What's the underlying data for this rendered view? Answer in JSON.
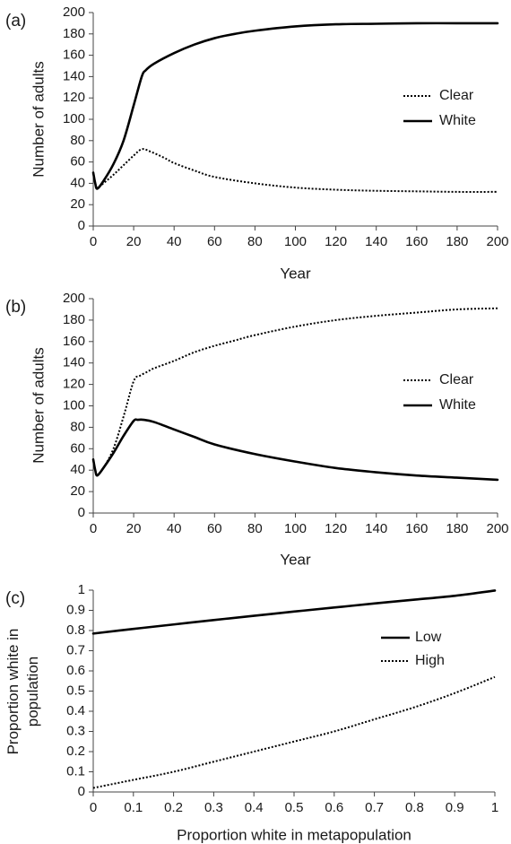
{
  "chart_data": [
    {
      "panel": "(a)",
      "type": "line",
      "xlabel": "Year",
      "ylabel": "Number of adults",
      "xlim": [
        0,
        200
      ],
      "ylim": [
        0,
        200
      ],
      "xticks": [
        "0",
        "20",
        "40",
        "60",
        "80",
        "100",
        "120",
        "140",
        "160",
        "180",
        "200"
      ],
      "yticks": [
        "0",
        "20",
        "40",
        "60",
        "80",
        "100",
        "120",
        "140",
        "160",
        "180",
        "200"
      ],
      "grid": false,
      "legend_position": "right-middle",
      "series": [
        {
          "name": "Clear",
          "style": "dotted",
          "x": [
            0,
            1,
            2,
            5,
            10,
            15,
            20,
            24,
            28,
            35,
            40,
            50,
            60,
            80,
            100,
            120,
            140,
            160,
            180,
            200
          ],
          "y": [
            50,
            40,
            36,
            40,
            48,
            57,
            66,
            72,
            70,
            64,
            59,
            52,
            46,
            40,
            36,
            34,
            33,
            32.5,
            32,
            32
          ]
        },
        {
          "name": "White",
          "style": "solid",
          "x": [
            0,
            1,
            2,
            5,
            10,
            15,
            20,
            24,
            26,
            30,
            40,
            50,
            60,
            70,
            80,
            100,
            120,
            140,
            160,
            180,
            200
          ],
          "y": [
            50,
            40,
            35,
            42,
            58,
            80,
            113,
            140,
            146,
            152,
            162,
            170,
            176,
            180,
            183,
            187,
            189,
            189.5,
            190,
            190,
            190
          ]
        }
      ]
    },
    {
      "panel": "(b)",
      "type": "line",
      "xlabel": "Year",
      "ylabel": "Number of adults",
      "xlim": [
        0,
        200
      ],
      "ylim": [
        0,
        200
      ],
      "xticks": [
        "0",
        "20",
        "40",
        "60",
        "80",
        "100",
        "120",
        "140",
        "160",
        "180",
        "200"
      ],
      "yticks": [
        "0",
        "20",
        "40",
        "60",
        "80",
        "100",
        "120",
        "140",
        "160",
        "180",
        "200"
      ],
      "grid": false,
      "legend_position": "right-middle",
      "series": [
        {
          "name": "Clear",
          "style": "dotted",
          "x": [
            0,
            1,
            2,
            5,
            10,
            15,
            20,
            23,
            27,
            30,
            40,
            50,
            60,
            70,
            80,
            100,
            120,
            140,
            160,
            180,
            200
          ],
          "y": [
            50,
            40,
            36,
            42,
            60,
            90,
            123,
            128,
            132,
            135,
            142,
            150,
            156,
            161,
            166,
            174,
            180,
            184,
            187,
            190,
            191
          ]
        },
        {
          "name": "White",
          "style": "solid",
          "x": [
            0,
            1,
            2,
            5,
            10,
            15,
            20,
            22,
            25,
            30,
            40,
            50,
            60,
            80,
            100,
            120,
            140,
            160,
            180,
            200
          ],
          "y": [
            50,
            40,
            35,
            42,
            56,
            72,
            86,
            87,
            87,
            85,
            78,
            71,
            64,
            55,
            48,
            42,
            38,
            35,
            33,
            31
          ]
        }
      ]
    },
    {
      "panel": "(c)",
      "type": "line",
      "xlabel": "Proportion white in metapopulation",
      "ylabel": "Proportion white in population",
      "ylabel_lines": [
        "Proportion white in",
        "population"
      ],
      "xlim": [
        0,
        1
      ],
      "ylim": [
        0,
        1
      ],
      "xticks": [
        "0",
        "0.1",
        "0.2",
        "0.3",
        "0.4",
        "0.5",
        "0.6",
        "0.7",
        "0.8",
        "0.9",
        "1"
      ],
      "yticks": [
        "0",
        "0.1",
        "0.2",
        "0.3",
        "0.4",
        "0.5",
        "0.6",
        "0.7",
        "0.8",
        "0.9",
        "1"
      ],
      "grid": false,
      "legend_position": "right-upper",
      "series": [
        {
          "name": "Low",
          "style": "solid",
          "x": [
            0,
            0.1,
            0.2,
            0.3,
            0.4,
            0.5,
            0.6,
            0.7,
            0.8,
            0.9,
            1.0
          ],
          "y": [
            0.785,
            0.808,
            0.83,
            0.852,
            0.873,
            0.894,
            0.914,
            0.934,
            0.953,
            0.972,
            0.998
          ]
        },
        {
          "name": "High",
          "style": "dotted",
          "x": [
            0,
            0.1,
            0.2,
            0.3,
            0.4,
            0.5,
            0.6,
            0.7,
            0.8,
            0.9,
            1.0
          ],
          "y": [
            0.02,
            0.06,
            0.1,
            0.15,
            0.2,
            0.25,
            0.3,
            0.36,
            0.42,
            0.49,
            0.57
          ]
        }
      ]
    }
  ]
}
